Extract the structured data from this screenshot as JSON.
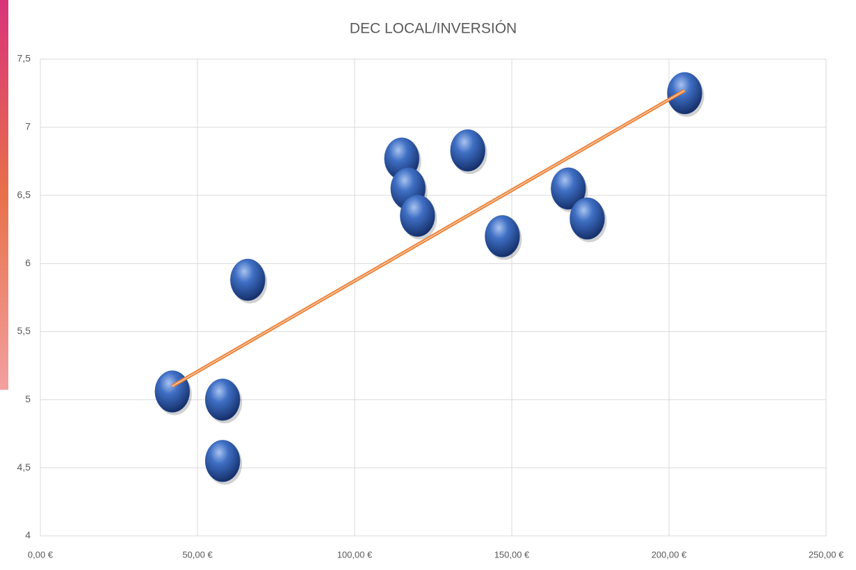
{
  "chart_data": {
    "type": "scatter",
    "title": "DEC LOCAL/INVERSIÓN",
    "x": [
      42,
      58,
      58,
      66,
      115,
      117,
      120,
      136,
      147,
      168,
      174,
      205
    ],
    "y": [
      5.06,
      5.0,
      4.55,
      5.88,
      6.77,
      6.55,
      6.35,
      6.83,
      6.2,
      6.55,
      6.33,
      7.25
    ],
    "color": "#2f5aa8",
    "trendline": {
      "x": [
        42,
        205
      ],
      "y": [
        5.1,
        7.27
      ],
      "color": "#ed7d31"
    },
    "xlim": [
      0,
      250
    ],
    "ylim": [
      4,
      7.5
    ],
    "xticks": [
      {
        "value": 0,
        "label": "0,00 €"
      },
      {
        "value": 50,
        "label": "50,00 €"
      },
      {
        "value": 100,
        "label": "100,00 €"
      },
      {
        "value": 150,
        "label": "150,00 €"
      },
      {
        "value": 200,
        "label": "200,00 €"
      },
      {
        "value": 250,
        "label": "250,00 €"
      }
    ],
    "yticks": [
      4,
      {
        "value": 4.5,
        "label": "4,5"
      },
      5,
      {
        "value": 5.5,
        "label": "5,5"
      },
      6,
      {
        "value": 6.5,
        "label": "6,5"
      },
      7,
      {
        "value": 7.5,
        "label": "7,5"
      }
    ],
    "grid": true
  }
}
